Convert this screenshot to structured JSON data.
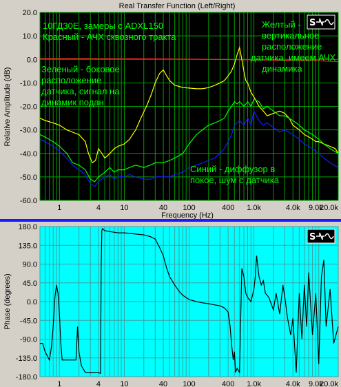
{
  "chart_data": [
    {
      "type": "line",
      "title": "Real Transfer Function (Left/Right)",
      "xlabel": "Frequency (Hz)",
      "ylabel": "Relative Amplitude (dB)",
      "xscale": "log",
      "xlim": [
        0.5,
        20000
      ],
      "ylim": [
        -60,
        20
      ],
      "grid": true,
      "background_color": "#000000",
      "grid_color": "#00a000",
      "y_ticks": [
        "20.0",
        "10.0",
        "0.0",
        "-10.0",
        "-20.0",
        "-30.0",
        "-40.0",
        "-50.0",
        "-60.0"
      ],
      "x_ticks": [
        {
          "value": 1,
          "label": "1"
        },
        {
          "value": 4,
          "label": "4"
        },
        {
          "value": 10,
          "label": "10"
        },
        {
          "value": 40,
          "label": "40"
        },
        {
          "value": 100,
          "label": "100"
        },
        {
          "value": 400,
          "label": "400"
        },
        {
          "value": 1000,
          "label": "1.0k"
        },
        {
          "value": 4000,
          "label": "4.0k"
        },
        {
          "value": 9000,
          "label": "9.0k"
        },
        {
          "value": 20000,
          "label": "20.0k"
        }
      ],
      "annotations": [
        {
          "lines": [
            "10ГД30Е, замеры с ADXL150",
            "Красный - АЧХ сквозного тракта"
          ],
          "color": "#00ff00"
        },
        {
          "lines": [
            "Зеленый - боковое",
            "расположение",
            "датчика, сигнал на",
            "динамик подан"
          ],
          "color": "#00ff00"
        },
        {
          "lines": [
            "Желтый -",
            "вертикальное",
            "расположение",
            "датчика, имеем АЧХ",
            "динамика"
          ],
          "color": "#00ff00"
        },
        {
          "lines": [
            "Синий - диффузор в",
            "покое, шум с датчика"
          ],
          "color": "#00ff00"
        }
      ],
      "series": [
        {
          "color": "#ff2020",
          "x": [
            0.5,
            1,
            10,
            100,
            1000,
            10000,
            20000
          ],
          "y": [
            0.5,
            0.4,
            0.3,
            0.1,
            -0.2,
            -0.6,
            -1.0
          ]
        },
        {
          "color": "#ffff00",
          "x": [
            0.5,
            0.6,
            0.8,
            1,
            1.3,
            1.6,
            2,
            2.5,
            2.8,
            3.2,
            3.6,
            4,
            4.5,
            5,
            6,
            7,
            8,
            10,
            12,
            15,
            18,
            22,
            26,
            30,
            35,
            40,
            45,
            50,
            60,
            70,
            80,
            100,
            130,
            160,
            200,
            250,
            300,
            350,
            400,
            450,
            500,
            550,
            600,
            650,
            700,
            750,
            800,
            900,
            1000,
            1100,
            1200,
            1400,
            1600,
            2000,
            2500,
            3000,
            3500,
            4000,
            5000,
            6000,
            7000,
            8000,
            9000,
            10000,
            12000,
            15000,
            18000,
            20000
          ],
          "y": [
            -25,
            -26,
            -27,
            -28,
            -30,
            -31,
            -32,
            -35,
            -40,
            -44,
            -43,
            -38,
            -40,
            -42,
            -40,
            -38,
            -37,
            -36,
            -34,
            -30,
            -25,
            -20,
            -15,
            -10,
            -6,
            -4.5,
            -7,
            -9,
            -11,
            -11.5,
            -12,
            -12.2,
            -12.5,
            -12.5,
            -12,
            -11,
            -10,
            -9,
            -7,
            -5,
            -2,
            2,
            5,
            0,
            -5,
            -9,
            -10,
            -14,
            -16,
            -18,
            -20,
            -22,
            -24,
            -23,
            -22,
            -23,
            -25,
            -28,
            -30,
            -32,
            -33,
            -34,
            -35,
            -35,
            -36,
            -37,
            -38,
            -40
          ]
        },
        {
          "color": "#00ff00",
          "x": [
            0.5,
            0.6,
            0.8,
            1,
            1.3,
            1.6,
            2,
            2.5,
            3,
            3.5,
            4,
            4.5,
            5,
            6,
            7,
            8,
            10,
            12,
            15,
            20,
            25,
            30,
            40,
            50,
            60,
            80,
            100,
            130,
            160,
            200,
            250,
            300,
            350,
            400,
            450,
            500,
            550,
            600,
            650,
            700,
            800,
            900,
            1000,
            1200,
            1400,
            1600,
            2000,
            2500,
            3000,
            4000,
            5000,
            6000,
            8000,
            10000,
            12000,
            15000,
            20000
          ],
          "y": [
            -32,
            -33,
            -35,
            -37,
            -40,
            -44,
            -45,
            -47,
            -51,
            -52,
            -50,
            -49,
            -48,
            -46,
            -48,
            -47,
            -47,
            -46,
            -45,
            -46,
            -45,
            -44,
            -44,
            -43,
            -42,
            -40,
            -36,
            -32,
            -30,
            -28,
            -27,
            -26,
            -25,
            -22,
            -20,
            -18,
            -19,
            -18,
            -19,
            -20,
            -18,
            -20,
            -17,
            -18,
            -21,
            -20,
            -22,
            -24,
            -24,
            -26,
            -28,
            -30,
            -32,
            -34,
            -36,
            -38,
            -40
          ]
        },
        {
          "color": "#1a1aff",
          "x": [
            0.5,
            0.6,
            0.8,
            1,
            1.3,
            1.6,
            2,
            2.5,
            3,
            3.5,
            4,
            4.5,
            5,
            6,
            7,
            8,
            10,
            12,
            15,
            20,
            25,
            30,
            40,
            50,
            60,
            80,
            100,
            130,
            160,
            200,
            250,
            300,
            350,
            400,
            450,
            500,
            550,
            600,
            650,
            700,
            800,
            900,
            1000,
            1200,
            1400,
            1600,
            2000,
            2500,
            3000,
            4000,
            5000,
            6000,
            8000,
            10000,
            12000,
            15000,
            20000
          ],
          "y": [
            -34,
            -35,
            -37,
            -39,
            -42,
            -45,
            -47,
            -49,
            -53,
            -54,
            -52,
            -51,
            -50,
            -49,
            -51,
            -50,
            -50,
            -49,
            -50,
            -51,
            -51,
            -50,
            -50,
            -50,
            -49,
            -48,
            -46,
            -45,
            -44,
            -43,
            -42,
            -40,
            -38,
            -35,
            -32,
            -28,
            -27,
            -26,
            -27,
            -28,
            -25,
            -28,
            -22,
            -26,
            -28,
            -27,
            -29,
            -31,
            -30,
            -32,
            -34,
            -36,
            -38,
            -40,
            -42,
            -44,
            -46
          ]
        }
      ]
    },
    {
      "type": "line",
      "ylabel": "Phase (degrees)",
      "xscale": "log",
      "xlim": [
        0.5,
        20000
      ],
      "ylim": [
        -180,
        180
      ],
      "grid": true,
      "background_color": "#00ffff",
      "grid_color": "#40a0a0",
      "y_ticks": [
        "180.0",
        "135.0",
        "90.0",
        "45.0",
        "0.0",
        "-45.0",
        "-90.0",
        "-135.0",
        "-180.0"
      ],
      "x_ticks": [
        {
          "value": 1,
          "label": "1"
        },
        {
          "value": 4,
          "label": "4"
        },
        {
          "value": 10,
          "label": "10"
        },
        {
          "value": 40,
          "label": "40"
        },
        {
          "value": 100,
          "label": "100"
        },
        {
          "value": 400,
          "label": "400"
        },
        {
          "value": 1000,
          "label": "1.0k"
        },
        {
          "value": 4000,
          "label": "4.0k"
        },
        {
          "value": 9000,
          "label": "9.0k"
        },
        {
          "value": 20000,
          "label": "20.0k"
        }
      ],
      "series": [
        {
          "color": "#000000",
          "x": [
            0.5,
            0.55,
            0.6,
            0.7,
            0.75,
            0.8,
            0.85,
            0.9,
            0.95,
            1.0,
            1.05,
            1.1,
            1.2,
            1.4,
            1.6,
            1.8,
            1.9,
            2.0,
            2.1,
            2.2,
            2.3,
            2.5,
            3.0,
            3.5,
            4.0,
            4.3,
            4.4,
            4.5,
            4.6,
            5,
            6,
            8,
            10,
            15,
            20,
            25,
            30,
            35,
            40,
            45,
            50,
            60,
            70,
            80,
            100,
            130,
            160,
            200,
            250,
            300,
            350,
            400,
            430,
            450,
            480,
            500,
            520,
            550,
            600,
            650,
            700,
            750,
            800,
            900,
            1000,
            1050,
            1100,
            1200,
            1300,
            1400,
            1500,
            1700,
            2000,
            2200,
            2500,
            2800,
            3000,
            3300,
            3700,
            4000,
            4500,
            5000,
            5500,
            6000,
            6500,
            7000,
            8000,
            9000,
            10000,
            11000,
            12000,
            13000,
            15000,
            17000,
            20000
          ],
          "y": [
            -100,
            -100,
            -120,
            -140,
            -110,
            -60,
            10,
            40,
            20,
            -30,
            -100,
            -140,
            -140,
            -140,
            -140,
            -140,
            -60,
            -120,
            -140,
            -155,
            -160,
            -170,
            -170,
            -170,
            -170,
            -172,
            80,
            170,
            175,
            170,
            168,
            165,
            165,
            162,
            160,
            156,
            150,
            130,
            110,
            80,
            60,
            40,
            25,
            15,
            5,
            0,
            -3,
            -5,
            -8,
            -10,
            -15,
            -25,
            -60,
            -100,
            -140,
            -120,
            -170,
            -160,
            -170,
            80,
            60,
            20,
            10,
            0,
            30,
            60,
            110,
            60,
            40,
            50,
            20,
            10,
            -20,
            20,
            -30,
            40,
            10,
            -40,
            -80,
            -40,
            -170,
            20,
            -90,
            40,
            -60,
            70,
            -80,
            20,
            -150,
            60,
            100,
            -60,
            30,
            -100,
            -60
          ]
        }
      ]
    }
  ]
}
